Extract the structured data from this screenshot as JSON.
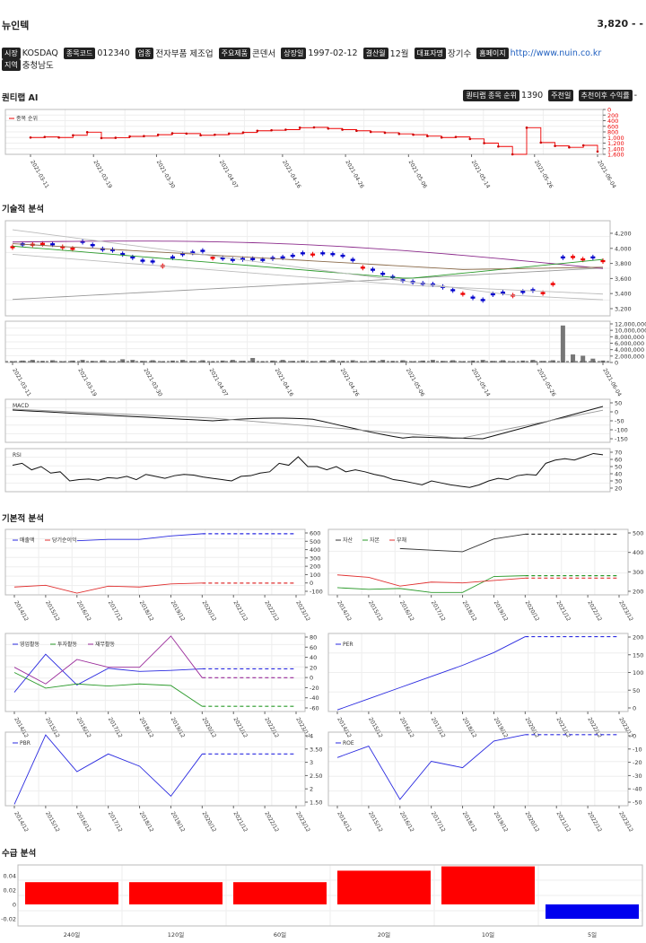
{
  "header": {
    "company": "뉴인텍",
    "price": "3,820 - -"
  },
  "info": [
    {
      "badge": "시장",
      "value": "KOSDAQ"
    },
    {
      "badge": "종목코드",
      "value": "012340"
    },
    {
      "badge": "업종",
      "value": "전자부품 제조업"
    },
    {
      "badge": "주요제품",
      "value": "콘덴서"
    },
    {
      "badge": "상장일",
      "value": "1997-02-12"
    },
    {
      "badge": "결산월",
      "value": "12월"
    },
    {
      "badge": "대표자명",
      "value": "장기수"
    },
    {
      "badge": "홈페이지",
      "value": "http://www.nuin.co.kr",
      "link": true
    }
  ],
  "info2": [
    {
      "badge": "지역",
      "value": "충청남도"
    }
  ],
  "quantum": {
    "title": "퀀티랩 AI",
    "rank_label": "퀀티랩 종목 순위",
    "rank_value": "1390",
    "btn_recommend": "주천일",
    "btn_return": "추천이후 수익률",
    "return_value": "-",
    "legend": "종목 순위",
    "ytick_labels": [
      "0",
      "200",
      "400",
      "600",
      "800",
      "1,000",
      "1,200",
      "1,400",
      "1,600"
    ],
    "xtick_labels": [
      "2021-03-11",
      "2021-03-19",
      "2021-03-30",
      "2021-04-07",
      "2021-04-16",
      "2021-04-26",
      "2021-05-06",
      "2021-05-14",
      "2021-05-26",
      "2021-06-04"
    ]
  },
  "technical": {
    "title": "기술적 분석",
    "price_ticks": [
      "4,200",
      "4,000",
      "3,800",
      "3,600",
      "3,400",
      "3,200"
    ],
    "volume_ticks": [
      "12,000,000",
      "10,000,000",
      "8,000,000",
      "6,000,000",
      "4,000,000",
      "2,000,000",
      "0"
    ],
    "xtick_labels": [
      "2021-03-11",
      "2021-03-19",
      "2021-03-30",
      "2021-04-07",
      "2021-04-16",
      "2021-04-26",
      "2021-05-06",
      "2021-05-14",
      "2021-05-26",
      "2021-06-04"
    ],
    "macd_label": "MACD",
    "macd_ticks": [
      "50",
      "0",
      "-50",
      "-100",
      "-150"
    ],
    "rsi_label": "RSI",
    "rsi_ticks": [
      "70",
      "60",
      "50",
      "40",
      "30",
      "20"
    ]
  },
  "fundamental": {
    "title": "기본적 분석",
    "years": [
      "2014/12",
      "2015/12",
      "2016/12",
      "2017/12",
      "2018/12",
      "2019/12",
      "2020/12",
      "2021/12",
      "2022/12",
      "2023/12"
    ],
    "charts": [
      {
        "legend": [
          {
            "name": "매출액",
            "color": "#2a2ae0"
          },
          {
            "name": "당기순이익",
            "color": "#e03030"
          }
        ],
        "ticks": [
          "600",
          "500",
          "400",
          "300",
          "200",
          "100",
          "0",
          "-100"
        ]
      },
      {
        "legend": [
          {
            "name": "자산",
            "color": "#333333"
          },
          {
            "name": "자본",
            "color": "#2a9a2a"
          },
          {
            "name": "부채",
            "color": "#e03030"
          }
        ],
        "ticks": [
          "500",
          "400",
          "300",
          "200"
        ]
      },
      {
        "legend": [
          {
            "name": "영업활동",
            "color": "#2a2ae0"
          },
          {
            "name": "투자활동",
            "color": "#2a9a2a"
          },
          {
            "name": "재무활동",
            "color": "#9a2a9a"
          }
        ],
        "ticks": [
          "80",
          "60",
          "40",
          "20",
          "0",
          "-20",
          "-40",
          "-60"
        ]
      },
      {
        "legend": [
          {
            "name": "PER",
            "color": "#2a2ae0"
          }
        ],
        "ticks": [
          "200",
          "150",
          "100",
          "50",
          "0"
        ]
      },
      {
        "legend": [
          {
            "name": "PBR",
            "color": "#2a2ae0"
          }
        ],
        "ticks": [
          "4",
          "3.50",
          "3",
          "2.50",
          "2",
          "1.50"
        ]
      },
      {
        "legend": [
          {
            "name": "ROE",
            "color": "#2a2ae0"
          }
        ],
        "ticks": [
          "0",
          "-10",
          "-20",
          "-30",
          "-40",
          "-50"
        ]
      }
    ]
  },
  "supply": {
    "title": "수급 분석",
    "ticks": [
      "0.04",
      "0.02",
      "0",
      "-0.02"
    ],
    "categories": [
      "240일",
      "120일",
      "60일",
      "20일",
      "10일",
      "5일"
    ]
  },
  "chart_data": [
    {
      "type": "line",
      "title": "",
      "series": [
        {
          "name": "종목 순위",
          "values": [
            1000,
            980,
            1000,
            920,
            810,
            1020,
            1010,
            960,
            950,
            900,
            850,
            860,
            920,
            900,
            860,
            820,
            760,
            740,
            720,
            650,
            640,
            680,
            720,
            760,
            800,
            830,
            870,
            900,
            950,
            1000,
            980,
            1050,
            1200,
            1320,
            1600,
            650,
            1180,
            1300,
            1350,
            1280,
            1500
          ]
        }
      ],
      "ylim": [
        1600,
        0
      ]
    },
    {
      "type": "bar",
      "title": "",
      "categories": [
        "240일",
        "120일",
        "60일",
        "20일",
        "10일",
        "5일"
      ],
      "values": [
        0.031,
        0.031,
        0.031,
        0.047,
        0.053,
        -0.02
      ],
      "ylim": [
        -0.03,
        0.055
      ]
    },
    {
      "type": "line",
      "title": "",
      "categories": [
        "2014/12",
        "2015/12",
        "2016/12",
        "2017/12",
        "2018/12",
        "2019/12",
        "2020/12"
      ],
      "series": [
        {
          "name": "매출액",
          "values": [
            null,
            null,
            490,
            505,
            505,
            545,
            570
          ]
        },
        {
          "name": "당기순이익",
          "values": [
            -40,
            -20,
            -110,
            -30,
            -40,
            -5,
            5
          ]
        }
      ],
      "ylim": [
        -130,
        620
      ]
    },
    {
      "type": "line",
      "title": "",
      "categories": [
        "2014/12",
        "2015/12",
        "2016/12",
        "2017/12",
        "2018/12",
        "2019/12",
        "2020/12"
      ],
      "series": [
        {
          "name": "자산",
          "values": [
            null,
            null,
            440,
            430,
            420,
            500,
            530
          ]
        },
        {
          "name": "자본",
          "values": [
            195,
            185,
            190,
            165,
            165,
            265,
            270
          ]
        },
        {
          "name": "부채",
          "values": [
            275,
            260,
            205,
            230,
            225,
            240,
            255
          ]
        }
      ],
      "ylim": [
        150,
        560
      ]
    },
    {
      "type": "line",
      "title": "",
      "categories": [
        "2014/12",
        "2015/12",
        "2016/12",
        "2017/12",
        "2018/12",
        "2019/12",
        "2020/12"
      ],
      "series": [
        {
          "name": "영업활동",
          "values": [
            -28,
            45,
            -14,
            18,
            12,
            14,
            17
          ]
        },
        {
          "name": "투자활동",
          "values": [
            10,
            -20,
            -12,
            -16,
            -12,
            -15,
            -55
          ]
        },
        {
          "name": "재무활동",
          "values": [
            20,
            -12,
            35,
            20,
            20,
            80,
            0
          ]
        }
      ],
      "ylim": [
        -65,
        85
      ]
    },
    {
      "type": "line",
      "title": "",
      "categories": [
        "2014/12",
        "2015/12",
        "2016/12",
        "2017/12",
        "2018/12",
        "2019/12",
        "2020/12"
      ],
      "series": [
        {
          "name": "PER",
          "values": [
            -5,
            30,
            65,
            100,
            135,
            175,
            225
          ]
        }
      ],
      "ylim": [
        -10,
        235
      ]
    },
    {
      "type": "line",
      "title": "",
      "categories": [
        "2014/12",
        "2015/12",
        "2016/12",
        "2017/12",
        "2018/12",
        "2019/12",
        "2020/12"
      ],
      "series": [
        {
          "name": "PBR",
          "values": [
            1.45,
            4.0,
            2.65,
            3.3,
            2.85,
            1.75,
            3.3
          ]
        }
      ],
      "ylim": [
        1.4,
        4.1
      ]
    },
    {
      "type": "line",
      "title": "",
      "categories": [
        "2014/12",
        "2015/12",
        "2016/12",
        "2017/12",
        "2018/12",
        "2019/12",
        "2020/12"
      ],
      "series": [
        {
          "name": "ROE",
          "values": [
            -17,
            -8,
            -50,
            -20,
            -25,
            -4,
            1
          ]
        }
      ],
      "ylim": [
        -55,
        3
      ]
    }
  ]
}
